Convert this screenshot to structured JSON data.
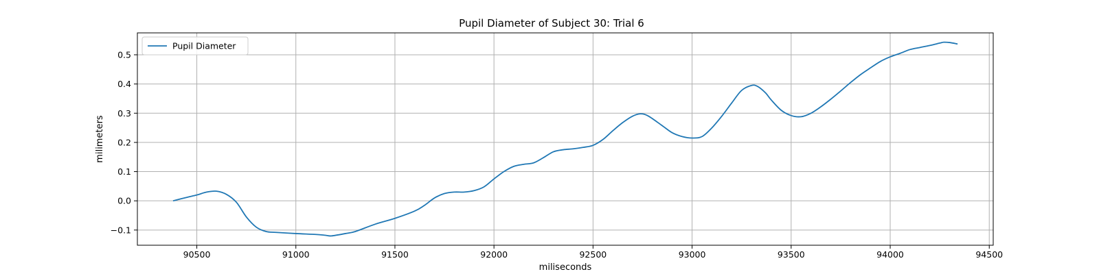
{
  "chart_data": {
    "type": "line",
    "title": "Pupil Diameter of Subject 30: Trial 6",
    "xlabel": "miliseconds",
    "ylabel": "milimeters",
    "xlim": [
      90200,
      94520
    ],
    "ylim": [
      -0.152,
      0.575
    ],
    "x_ticks": [
      90500,
      91000,
      91500,
      92000,
      92500,
      93000,
      93500,
      94000,
      94500
    ],
    "y_ticks": [
      -0.1,
      0.0,
      0.1,
      0.2,
      0.3,
      0.4,
      0.5
    ],
    "y_tick_labels": [
      "−0.1",
      "0.0",
      "0.1",
      "0.2",
      "0.3",
      "0.4",
      "0.5"
    ],
    "grid": true,
    "legend_position": "top-left",
    "series": [
      {
        "name": "Pupil Diameter",
        "color": "#1f77b4",
        "x": [
          90380,
          90450,
          90500,
          90550,
          90600,
          90650,
          90700,
          90750,
          90800,
          90850,
          90900,
          91000,
          91100,
          91150,
          91180,
          91250,
          91300,
          91400,
          91500,
          91600,
          91650,
          91700,
          91750,
          91800,
          91850,
          91900,
          91950,
          92000,
          92050,
          92100,
          92150,
          92200,
          92250,
          92300,
          92350,
          92400,
          92450,
          92500,
          92550,
          92600,
          92650,
          92700,
          92740,
          92780,
          92850,
          92900,
          92950,
          93000,
          93050,
          93100,
          93150,
          93200,
          93250,
          93300,
          93330,
          93370,
          93400,
          93450,
          93500,
          93550,
          93600,
          93650,
          93700,
          93750,
          93800,
          93850,
          93900,
          93950,
          94000,
          94050,
          94100,
          94150,
          94200,
          94250,
          94270,
          94300,
          94340
        ],
        "y": [
          0.0,
          0.012,
          0.02,
          0.03,
          0.033,
          0.022,
          -0.005,
          -0.055,
          -0.09,
          -0.105,
          -0.108,
          -0.112,
          -0.115,
          -0.118,
          -0.12,
          -0.112,
          -0.105,
          -0.08,
          -0.06,
          -0.035,
          -0.015,
          0.01,
          0.025,
          0.03,
          0.03,
          0.035,
          0.048,
          0.075,
          0.1,
          0.118,
          0.125,
          0.13,
          0.148,
          0.168,
          0.175,
          0.178,
          0.183,
          0.19,
          0.21,
          0.24,
          0.268,
          0.29,
          0.298,
          0.29,
          0.257,
          0.233,
          0.22,
          0.215,
          0.22,
          0.25,
          0.29,
          0.335,
          0.378,
          0.395,
          0.392,
          0.37,
          0.345,
          0.31,
          0.292,
          0.288,
          0.3,
          0.322,
          0.348,
          0.376,
          0.405,
          0.432,
          0.455,
          0.477,
          0.493,
          0.505,
          0.518,
          0.525,
          0.532,
          0.54,
          0.543,
          0.542,
          0.537
        ]
      }
    ]
  }
}
